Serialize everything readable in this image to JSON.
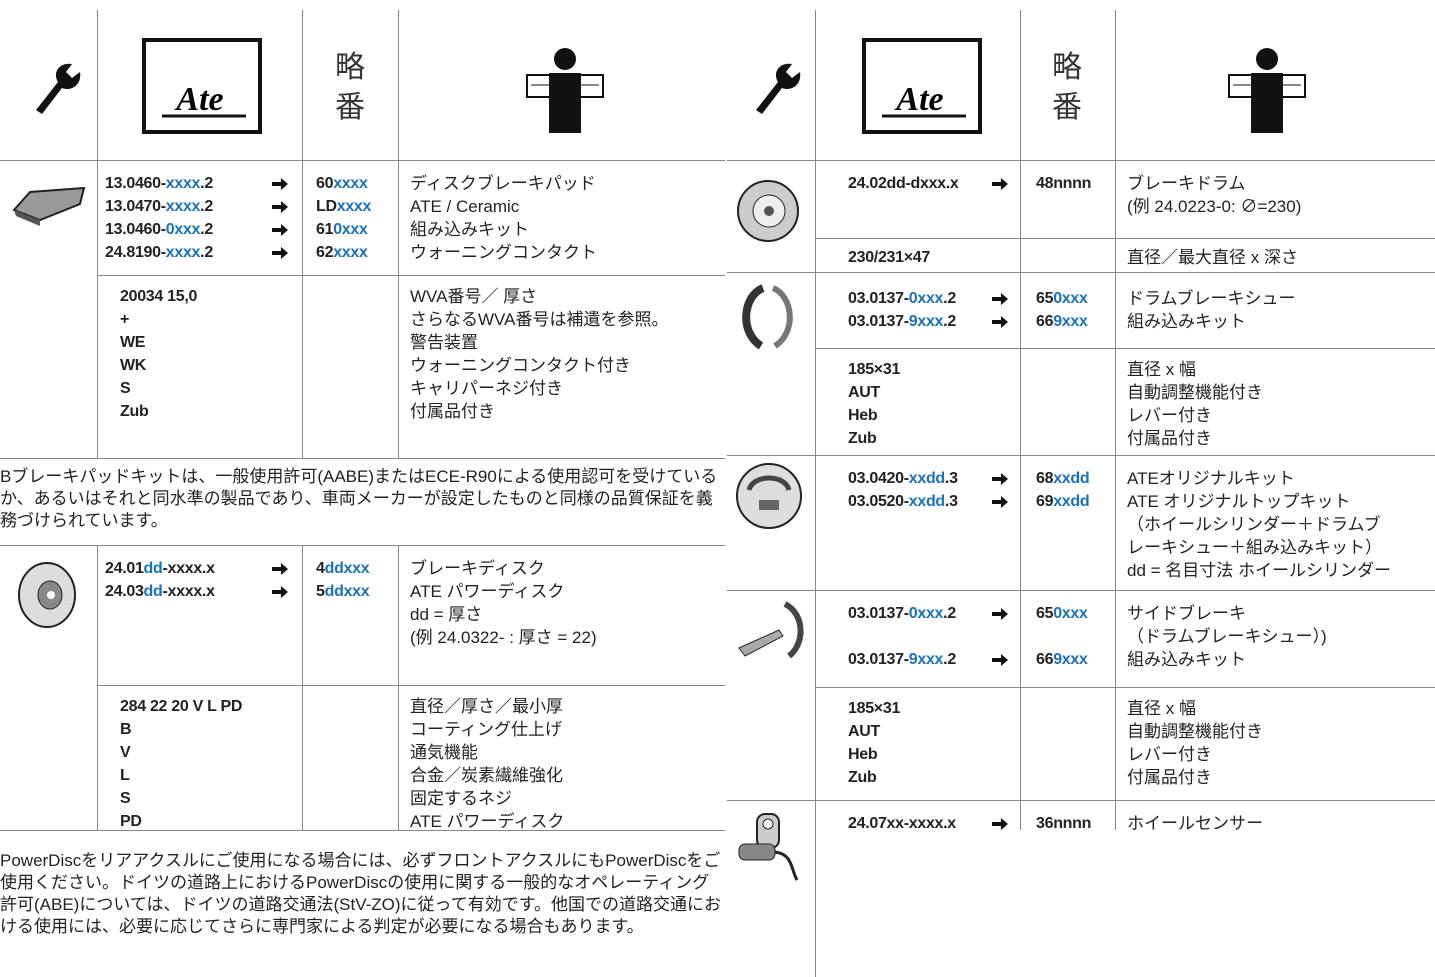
{
  "header": {
    "abbr_top": "略",
    "abbr_bottom": "番",
    "logo": "Ate"
  },
  "left": {
    "pads": {
      "main": {
        "codes": [
          [
            "13.0460-",
            "xxxx",
            ".2"
          ],
          [
            "13.0470-",
            "xxxx",
            ".2"
          ],
          [
            "13.0460-",
            "0xxx",
            ".2"
          ],
          [
            "24.8190-",
            "xxxx",
            ".2"
          ]
        ],
        "short": [
          [
            "60",
            "xxxx"
          ],
          [
            "LD",
            "xxxx"
          ],
          [
            "61",
            "0xxx"
          ],
          [
            "62",
            "xxxx"
          ]
        ],
        "desc": [
          "ディスクブレーキパッド",
          "ATE / Ceramic",
          "組み込みキット",
          "ウォーニングコンタクト"
        ]
      },
      "sub": {
        "codes": [
          "20034 15,0",
          "+",
          "WE",
          "WK",
          "S",
          "Zub"
        ],
        "desc": [
          "WVA番号／ 厚さ",
          "さらなるWVA番号は補遺を参照。",
          "警告装置",
          "ウォーニングコンタクト付き",
          "キャリパーネジ付き",
          "付属品付き"
        ]
      }
    },
    "note_abe": "Bブレーキパッドキットは、一般使用許可(AABE)またはECE-R90による使用認可を受けているか、あるいはそれと同水準の製品であり、車両メーカーが設定したものと同様の品質保証を義務づけられています。",
    "disc": {
      "main": {
        "codes": [
          [
            "24.01",
            "dd",
            "-xxxx.x"
          ],
          [
            "24.03",
            "dd",
            "-xxxx.x"
          ]
        ],
        "short": [
          [
            "4",
            "ddxxx"
          ],
          [
            "5",
            "ddxxx"
          ]
        ],
        "desc": [
          "ブレーキディスク",
          "ATE パワーディスク",
          "dd = 厚さ",
          "(例 24.0322- : 厚さ = 22)"
        ]
      },
      "sub": {
        "codes": [
          "284 22 20 V L PD",
          "B",
          "V",
          "L",
          "S",
          "PD"
        ],
        "desc": [
          "直径／厚さ／最小厚",
          "コーティング仕上げ",
          "通気機能",
          "合金／炭素繊維強化",
          "固定するネジ",
          "ATE パワーディスク"
        ]
      }
    },
    "note_powerdisc": "PowerDiscをリアアクスルにご使用になる場合には、必ずフロントアクスルにもPowerDiscをご使用ください。ドイツの道路上におけるPowerDiscの使用に関する一般的なオペレーティング許可(ABE)については、ドイツの道路交通法(StV-ZO)に従って有効です。他国での道路交通における使用には、必要に応じてさらに専門家による判定が必要になる場合もあります。"
  },
  "right": {
    "drum": {
      "main": {
        "codes": [
          [
            "24.02dd-dxxx.x"
          ]
        ],
        "short": [
          [
            "48nnnn"
          ]
        ],
        "desc": [
          "ブレーキドラム",
          "(例 24.0223-0: ∅=230)"
        ]
      },
      "sub": {
        "codes": [
          "230/231×47"
        ],
        "desc": [
          "直径／最大直径 x 深さ"
        ]
      }
    },
    "shoes": {
      "main": {
        "codes": [
          [
            "03.0137-",
            "0xxx",
            ".2"
          ],
          [
            "03.0137-",
            "9xxx",
            ".2"
          ]
        ],
        "short": [
          [
            "65",
            "0xxx"
          ],
          [
            "66",
            "9xxx"
          ]
        ],
        "desc": [
          "ドラムブレーキシュー",
          "組み込みキット"
        ]
      },
      "sub": {
        "codes": [
          "185×31",
          "AUT",
          "Heb",
          "Zub"
        ],
        "desc": [
          "直径 x 幅",
          "自動調整機能付き",
          "レバー付き",
          "付属品付き"
        ]
      }
    },
    "kit": {
      "main": {
        "codes": [
          [
            "03.0420-",
            "xxdd",
            ".3"
          ],
          [
            "03.0520-",
            "xxdd",
            ".3"
          ]
        ],
        "short": [
          [
            "68",
            "xxdd"
          ],
          [
            "69",
            "xxdd"
          ]
        ],
        "desc": [
          "ATEオリジナルキット",
          "ATE オリジナルトップキット",
          "（ホイールシリンダー＋ドラムブ",
          "レーキシュー＋組み込みキット）",
          "dd = 名目寸法 ホイールシリンダー"
        ]
      }
    },
    "side_brake": {
      "main": {
        "codes": [
          [
            "03.0137-",
            "0xxx",
            ".2"
          ],
          [
            "03.0137-",
            "9xxx",
            ".2"
          ]
        ],
        "short": [
          [
            "65",
            "0xxx"
          ],
          [
            "66",
            "9xxx"
          ]
        ],
        "desc": [
          "サイドブレーキ",
          "（ドラムブレーキシュー）)",
          "組み込みキット"
        ]
      },
      "sub": {
        "codes": [
          "185×31",
          "AUT",
          "Heb",
          "Zub"
        ],
        "desc": [
          "直径 x 幅",
          "自動調整機能付き",
          "レバー付き",
          "付属品付き"
        ]
      }
    },
    "sensor": {
      "main": {
        "codes": [
          [
            "24.07xx-xxxx.x"
          ]
        ],
        "short": [
          [
            "36nnnn"
          ]
        ],
        "desc": [
          "ホイールセンサー"
        ]
      }
    }
  }
}
